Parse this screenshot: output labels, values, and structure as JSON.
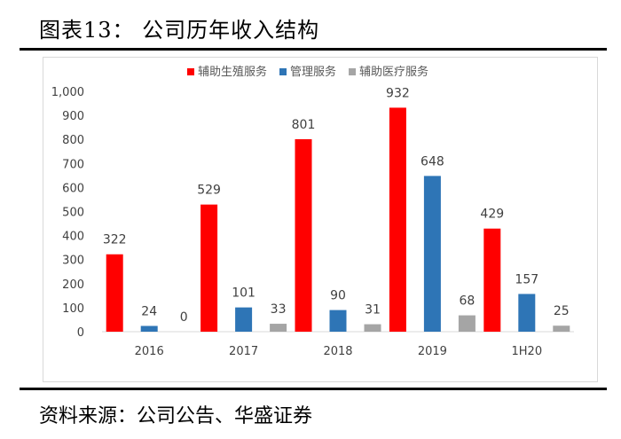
{
  "header": {
    "title": "图表13：   公司历年收入结构"
  },
  "footer": {
    "source": "资料来源：公司公告、华盛证券"
  },
  "colors": {
    "series": [
      "#ff0000",
      "#2e75b6",
      "#a5a5a5"
    ],
    "axis": "#d9d9d9",
    "text": "#404040"
  },
  "chart_data": {
    "type": "bar",
    "title": "",
    "xlabel": "",
    "ylabel": "",
    "categories": [
      "2016",
      "2017",
      "2018",
      "2019",
      "1H20"
    ],
    "series": [
      {
        "name": "辅助生殖服务",
        "values": [
          322,
          529,
          801,
          932,
          429
        ]
      },
      {
        "name": "管理服务",
        "values": [
          24,
          101,
          90,
          648,
          157
        ]
      },
      {
        "name": "辅助医疗服务",
        "values": [
          0,
          33,
          31,
          68,
          25
        ]
      }
    ],
    "ylim": [
      0,
      1000
    ],
    "yticks": [
      "0",
      "100",
      "200",
      "300",
      "400",
      "500",
      "600",
      "700",
      "800",
      "900",
      "1,000"
    ],
    "data_labels": true,
    "grid": false,
    "legend": "top"
  }
}
